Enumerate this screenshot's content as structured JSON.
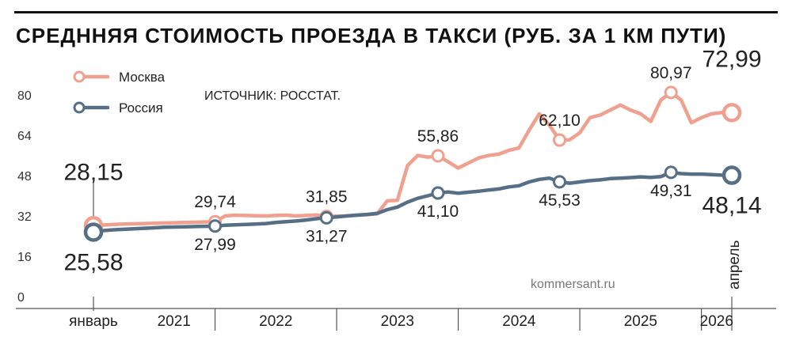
{
  "header": {
    "title": "СРЕДННЯЯ СТОИМОСТЬ ПРОЕЗДА В ТАКСИ (РУБ. ЗА 1 КМ ПУТИ)"
  },
  "source": "ИСТОЧНИК: РОССТАТ.",
  "credit": "kommersant.ru",
  "colors": {
    "moscow": "#f0a08f",
    "russia": "#566f86",
    "text": "#222222"
  },
  "chart_data": {
    "type": "line",
    "title": "СРЕДННЯЯ СТОИМОСТЬ ПРОЕЗДА В ТАКСИ (РУБ. ЗА 1 КМ ПУТИ)",
    "ylim": [
      0,
      90
    ],
    "y_ticks": [
      "0",
      "16",
      "32",
      "48",
      "64",
      "80"
    ],
    "grid": false,
    "legend_position": "top-left",
    "x_start_label": "январь",
    "x_end_label": "апрель",
    "years": [
      "2021",
      "2022",
      "2023",
      "2024",
      "2025",
      "2026"
    ],
    "x": [
      "2021-01",
      "2021-02",
      "2021-03",
      "2021-04",
      "2021-05",
      "2021-06",
      "2021-07",
      "2021-08",
      "2021-09",
      "2021-10",
      "2021-11",
      "2021-12",
      "2022-01",
      "2022-02",
      "2022-03",
      "2022-04",
      "2022-05",
      "2022-06",
      "2022-07",
      "2022-08",
      "2022-09",
      "2022-10",
      "2022-11",
      "2022-12",
      "2023-01",
      "2023-02",
      "2023-03",
      "2023-04",
      "2023-05",
      "2023-06",
      "2023-07",
      "2023-08",
      "2023-09",
      "2023-10",
      "2023-11",
      "2023-12",
      "2024-01",
      "2024-02",
      "2024-03",
      "2024-04",
      "2024-05",
      "2024-06",
      "2024-07",
      "2024-08",
      "2024-09",
      "2024-10",
      "2024-11",
      "2024-12",
      "2025-01",
      "2025-02",
      "2025-03",
      "2025-04",
      "2025-05",
      "2025-06",
      "2025-07",
      "2025-08",
      "2025-09",
      "2025-10",
      "2025-11",
      "2025-12",
      "2026-01",
      "2026-02",
      "2026-03",
      "2026-04"
    ],
    "series": [
      {
        "name": "Москва",
        "values": [
          28.15,
          28.4,
          28.6,
          28.8,
          28.9,
          29.0,
          29.1,
          29.2,
          29.3,
          29.4,
          29.5,
          29.6,
          29.74,
          32.0,
          32.3,
          32.2,
          32.1,
          32.0,
          32.2,
          32.3,
          32.0,
          32.2,
          32.4,
          31.85,
          31.9,
          32.0,
          32.3,
          32.5,
          32.8,
          38.0,
          38.2,
          52.0,
          56.0,
          55.3,
          55.86,
          53.5,
          51.0,
          53.0,
          55.0,
          56.0,
          56.5,
          58.0,
          59.0,
          66.0,
          72.5,
          68.0,
          62.1,
          62.2,
          65.0,
          71.0,
          72.0,
          74.0,
          76.0,
          74.0,
          72.5,
          69.5,
          78.0,
          80.97,
          78.0,
          69.0,
          71.0,
          72.5,
          72.99,
          72.99
        ]
      },
      {
        "name": "Россия",
        "values": [
          25.58,
          26.2,
          26.5,
          26.7,
          26.9,
          27.1,
          27.3,
          27.5,
          27.6,
          27.7,
          27.8,
          27.9,
          27.99,
          28.3,
          28.5,
          28.6,
          28.8,
          29.0,
          29.4,
          29.7,
          30.0,
          30.4,
          30.9,
          31.27,
          31.6,
          32.0,
          32.3,
          32.6,
          33.0,
          34.5,
          35.5,
          37.5,
          39.0,
          40.0,
          41.1,
          41.5,
          41.0,
          41.4,
          41.8,
          42.3,
          42.7,
          43.5,
          44.0,
          45.5,
          46.5,
          47.0,
          45.53,
          45.0,
          45.5,
          46.0,
          46.3,
          46.8,
          47.0,
          47.2,
          47.5,
          47.3,
          47.6,
          49.31,
          48.8,
          48.6,
          48.6,
          48.4,
          48.2,
          48.14
        ]
      }
    ],
    "annotations": [
      {
        "series": "Москва",
        "x": "2021-01",
        "label": "28,15",
        "style": "big",
        "position": "above"
      },
      {
        "series": "Россия",
        "x": "2021-01",
        "label": "25,58",
        "style": "big",
        "position": "below"
      },
      {
        "series": "Москва",
        "x": "2022-01",
        "label": "29,74",
        "style": "mid",
        "position": "above"
      },
      {
        "series": "Россия",
        "x": "2022-01",
        "label": "27,99",
        "style": "mid",
        "position": "below"
      },
      {
        "series": "Москва",
        "x": "2022-12",
        "label": "31,85",
        "style": "mid",
        "position": "above"
      },
      {
        "series": "Россия",
        "x": "2022-12",
        "label": "31,27",
        "style": "mid",
        "position": "below"
      },
      {
        "series": "Москва",
        "x": "2023-11",
        "label": "55,86",
        "style": "mid",
        "position": "above"
      },
      {
        "series": "Россия",
        "x": "2023-11",
        "label": "41,10",
        "style": "mid",
        "position": "below"
      },
      {
        "series": "Москва",
        "x": "2024-11",
        "label": "62,10",
        "style": "mid",
        "position": "above"
      },
      {
        "series": "Россия",
        "x": "2024-11",
        "label": "45,53",
        "style": "mid",
        "position": "below"
      },
      {
        "series": "Москва",
        "x": "2025-10",
        "label": "80,97",
        "style": "mid",
        "position": "above"
      },
      {
        "series": "Россия",
        "x": "2025-10",
        "label": "49,31",
        "style": "mid",
        "position": "below"
      },
      {
        "series": "Москва",
        "x": "2026-04",
        "label": "72,99",
        "style": "big",
        "position": "above"
      },
      {
        "series": "Россия",
        "x": "2026-04",
        "label": "48,14",
        "style": "big",
        "position": "below"
      }
    ]
  }
}
